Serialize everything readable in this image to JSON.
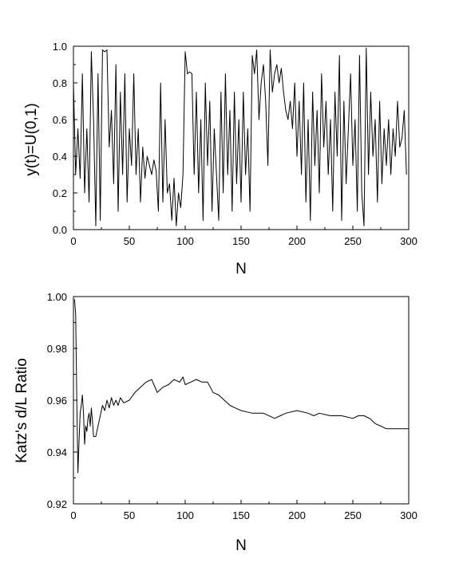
{
  "chart_data": [
    {
      "type": "line",
      "xlabel": "N",
      "ylabel": "y(t)=U(0,1)",
      "xlim": [
        0,
        300
      ],
      "ylim": [
        0.0,
        1.0
      ],
      "x_ticks": [
        "0",
        "50",
        "100",
        "150",
        "200",
        "250",
        "300"
      ],
      "y_ticks": [
        "0.0",
        "0.2",
        "0.4",
        "0.6",
        "0.8",
        "1.0"
      ],
      "grid": false,
      "series": [
        {
          "x": [
            0,
            2,
            4,
            6,
            8,
            10,
            12,
            14,
            16,
            18,
            20,
            22,
            24,
            26,
            28,
            30,
            32,
            34,
            36,
            38,
            40,
            42,
            44,
            46,
            48,
            50,
            52,
            54,
            56,
            58,
            60,
            62,
            64,
            66,
            68,
            70,
            72,
            74,
            76,
            78,
            80,
            82,
            84,
            86,
            88,
            90,
            92,
            94,
            96,
            98,
            100,
            102,
            104,
            106,
            108,
            110,
            112,
            114,
            116,
            118,
            120,
            122,
            124,
            126,
            128,
            130,
            132,
            134,
            136,
            138,
            140,
            142,
            144,
            146,
            148,
            150,
            152,
            154,
            156,
            158,
            160,
            162,
            164,
            166,
            168,
            170,
            172,
            174,
            176,
            178,
            180,
            182,
            184,
            186,
            188,
            190,
            192,
            194,
            196,
            198,
            200,
            202,
            204,
            206,
            208,
            210,
            212,
            214,
            216,
            218,
            220,
            222,
            224,
            226,
            228,
            230,
            232,
            234,
            236,
            238,
            240,
            242,
            244,
            246,
            248,
            250,
            252,
            254,
            256,
            258,
            260,
            262,
            264,
            266,
            268,
            270,
            272,
            274,
            276,
            278,
            280,
            282,
            284,
            286,
            288,
            290,
            292,
            294,
            296,
            298
          ],
          "values": [
            0.8,
            0.3,
            0.55,
            0.28,
            0.85,
            0.2,
            0.55,
            0.15,
            0.97,
            0.6,
            0.02,
            0.85,
            0.05,
            0.98,
            0.97,
            0.98,
            0.45,
            0.65,
            0.25,
            0.9,
            0.1,
            0.75,
            0.3,
            0.85,
            0.15,
            0.55,
            0.35,
            0.85,
            0.3,
            0.55,
            0.15,
            0.45,
            0.28,
            0.4,
            0.35,
            0.3,
            0.38,
            0.32,
            0.1,
            0.8,
            0.15,
            0.6,
            0.2,
            0.25,
            0.05,
            0.28,
            0.02,
            0.2,
            0.12,
            0.3,
            0.97,
            0.85,
            0.86,
            0.85,
            0.3,
            0.75,
            0.2,
            0.6,
            0.05,
            0.8,
            0.35,
            0.7,
            0.1,
            0.55,
            0.3,
            0.05,
            0.75,
            0.2,
            0.85,
            0.3,
            0.65,
            0.1,
            0.75,
            0.25,
            0.6,
            0.15,
            0.75,
            0.3,
            0.55,
            0.1,
            0.95,
            0.85,
            0.98,
            0.6,
            0.8,
            0.9,
            0.7,
            0.35,
            0.98,
            0.75,
            0.85,
            0.9,
            0.8,
            0.88,
            0.75,
            0.65,
            0.6,
            0.7,
            0.55,
            0.8,
            0.4,
            0.7,
            0.3,
            0.8,
            0.15,
            0.6,
            0.05,
            0.75,
            0.35,
            0.65,
            0.2,
            0.85,
            0.45,
            0.7,
            0.3,
            0.6,
            0.1,
            0.75,
            0.4,
            0.95,
            0.05,
            0.7,
            0.25,
            0.55,
            0.85,
            0.35,
            0.6,
            0.1,
            0.95,
            0.2,
            0.02,
            0.99,
            0.3,
            0.75,
            0.4,
            0.6,
            0.15,
            0.7,
            0.25,
            0.55,
            0.35,
            0.6,
            0.3,
            0.55,
            0.4,
            0.7,
            0.45,
            0.5,
            0.65,
            0.3
          ]
        }
      ]
    },
    {
      "type": "line",
      "xlabel": "N",
      "ylabel": "Katz's d/L Ratio",
      "xlim": [
        0,
        300
      ],
      "ylim": [
        0.92,
        1.0
      ],
      "x_ticks": [
        "0",
        "50",
        "100",
        "150",
        "200",
        "250",
        "300"
      ],
      "y_ticks": [
        "0.92",
        "0.94",
        "0.96",
        "0.98",
        "1.00"
      ],
      "grid": false,
      "series": [
        {
          "x": [
            1,
            2,
            3,
            4,
            5,
            6,
            7,
            8,
            9,
            10,
            11,
            12,
            13,
            14,
            15,
            16,
            17,
            18,
            20,
            22,
            24,
            26,
            28,
            30,
            32,
            34,
            36,
            38,
            40,
            42,
            45,
            50,
            55,
            60,
            65,
            70,
            72,
            75,
            80,
            85,
            90,
            95,
            98,
            100,
            105,
            110,
            115,
            120,
            125,
            130,
            135,
            140,
            145,
            150,
            160,
            170,
            180,
            185,
            190,
            200,
            210,
            215,
            220,
            230,
            240,
            250,
            255,
            260,
            265,
            270,
            275,
            280,
            290,
            300
          ],
          "values": [
            0.999,
            0.993,
            0.96,
            0.932,
            0.944,
            0.955,
            0.958,
            0.962,
            0.955,
            0.943,
            0.95,
            0.948,
            0.953,
            0.955,
            0.95,
            0.957,
            0.952,
            0.946,
            0.946,
            0.95,
            0.954,
            0.958,
            0.956,
            0.96,
            0.957,
            0.961,
            0.958,
            0.96,
            0.958,
            0.961,
            0.959,
            0.96,
            0.963,
            0.965,
            0.967,
            0.968,
            0.966,
            0.963,
            0.965,
            0.966,
            0.968,
            0.967,
            0.969,
            0.966,
            0.967,
            0.968,
            0.967,
            0.967,
            0.963,
            0.962,
            0.96,
            0.958,
            0.957,
            0.956,
            0.955,
            0.955,
            0.953,
            0.954,
            0.955,
            0.956,
            0.955,
            0.954,
            0.955,
            0.954,
            0.954,
            0.953,
            0.954,
            0.954,
            0.953,
            0.951,
            0.95,
            0.949,
            0.949,
            0.949
          ]
        }
      ]
    }
  ]
}
